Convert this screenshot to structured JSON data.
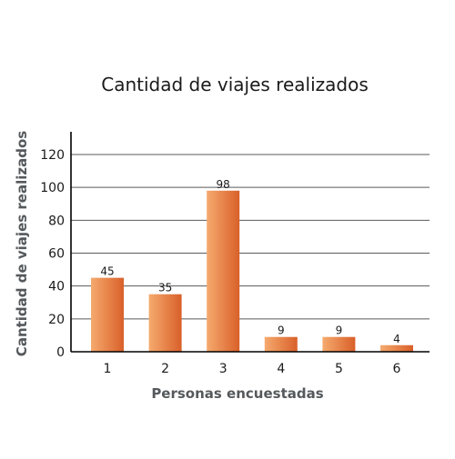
{
  "chart_data": {
    "type": "bar",
    "title": "Cantidad de viajes realizados",
    "xlabel": "Personas encuestadas",
    "ylabel": "Cantidad de viajes realizados",
    "categories": [
      "1",
      "2",
      "3",
      "4",
      "5",
      "6"
    ],
    "values": [
      45,
      35,
      98,
      9,
      9,
      4
    ],
    "ylim": [
      0,
      130
    ],
    "yticks": [
      0,
      20,
      40,
      60,
      80,
      100,
      120
    ],
    "grid": true,
    "legend": "none",
    "data_labels": true
  },
  "colors": {
    "bar_light": "#f5aa6e",
    "bar_dark": "#d9602a",
    "axis_title": "#55595c"
  }
}
